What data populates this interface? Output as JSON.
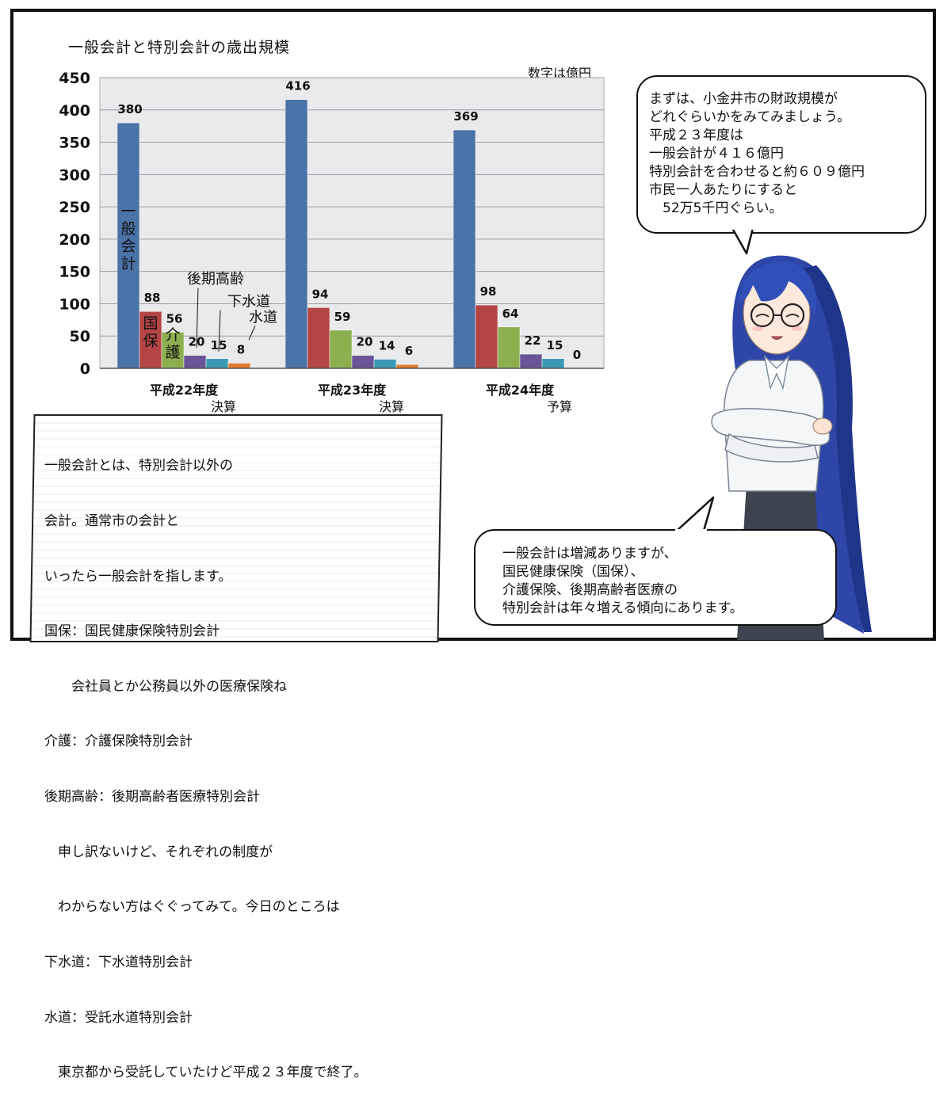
{
  "chart_title": "一般会計と特別会計の歳出規模",
  "unit_note": "数字は億円",
  "chart_data": {
    "type": "bar",
    "title": "一般会計と特別会計の歳出規模",
    "ylim": [
      0,
      450
    ],
    "yticks": [
      0,
      50,
      100,
      150,
      200,
      250,
      300,
      350,
      400,
      450
    ],
    "grid": true,
    "categories": [
      "平成22年度",
      "平成23年度",
      "平成24年度"
    ],
    "category_notes": [
      "決算",
      "決算",
      "予算"
    ],
    "series": [
      {
        "name": "一般会計",
        "color": "#4a73a8",
        "values": [
          380,
          416,
          369
        ]
      },
      {
        "name": "国保",
        "color": "#b54545",
        "values": [
          88,
          94,
          98
        ]
      },
      {
        "name": "介護",
        "color": "#8caf4f",
        "values": [
          56,
          59,
          64
        ]
      },
      {
        "name": "後期高齢",
        "color": "#6a5497",
        "values": [
          20,
          20,
          22
        ]
      },
      {
        "name": "下水道",
        "color": "#3a9ab6",
        "values": [
          15,
          14,
          15
        ]
      },
      {
        "name": "水道",
        "color": "#e17c2e",
        "values": [
          8,
          6,
          0
        ]
      }
    ]
  },
  "bubble_top": {
    "lines": [
      "まずは、小金井市の財政規模が",
      "どれぐらいかをみてみましょう。",
      "平成２３年度は",
      "一般会計が４１６億円",
      "特別会計を合わせると約６０９億円",
      "市民一人あたりにすると",
      "　52万5千円ぐらい。"
    ]
  },
  "bubble_bottom": {
    "lines": [
      "一般会計は増減ありますが、",
      "国民健康保険（国保）、",
      "介護保険、後期高齢者医療の",
      "特別会計は年々増える傾向にあります。"
    ]
  },
  "notes": {
    "lines": [
      "一般会計とは、特別会計以外の",
      "会計。通常市の会計と",
      "いったら一般会計を指します。",
      "国保：国民健康保険特別会計",
      "　　会社員とか公務員以外の医療保険ね",
      "介護：介護保険特別会計",
      "後期高齢：後期高齢者医療特別会計",
      "　申し訳ないけど、それぞれの制度が",
      "　わからない方はぐぐってみて。今日のところは",
      "下水道：下水道特別会計",
      "水道：受託水道特別会計",
      "　東京都から受託していたけど平成２３年度で終了。"
    ]
  }
}
